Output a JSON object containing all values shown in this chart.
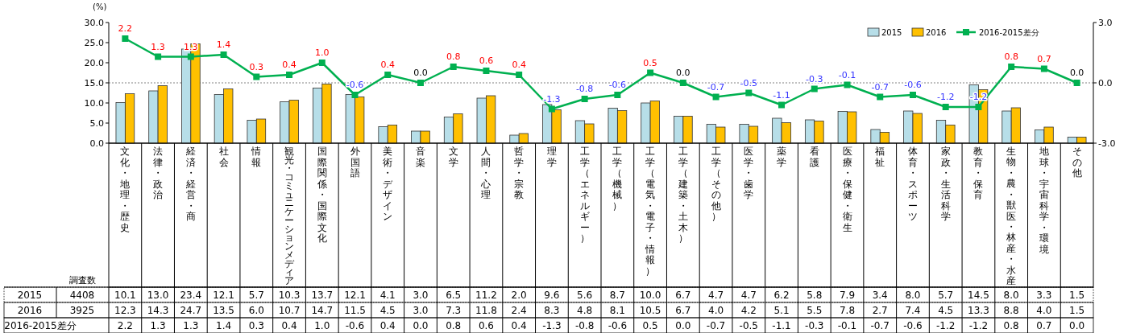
{
  "chart_data": {
    "type": "bar",
    "ylabel": "(%)",
    "categories": [
      "文化・地理・歴史",
      "法律・政治",
      "経済・経営・商",
      "社会",
      "情報",
      "観光・コミュニケーションメディア",
      "国際関係・国際文化",
      "外国語",
      "美術・デザイン",
      "音楽",
      "文学",
      "人間・心理",
      "哲学・宗教",
      "理学",
      "工学（エネルギー）",
      "工学（機械）",
      "工学（電気・電子・情報）",
      "工学（建築・土木）",
      "工学（その他）",
      "医学・歯学",
      "薬学",
      "看護",
      "医療・保健・衛生",
      "福祉",
      "体育・スポーツ",
      "家政・生活科学",
      "教育・保育",
      "生物・農・獣医・林産・水産",
      "地球・宇宙科学・環境",
      "その他"
    ],
    "series": [
      {
        "name": "2015",
        "color": "#b7dee8",
        "values": [
          10.1,
          13.0,
          23.4,
          12.1,
          5.7,
          10.3,
          13.7,
          12.1,
          4.1,
          3.0,
          6.5,
          11.2,
          2.0,
          9.6,
          5.6,
          8.7,
          10.0,
          6.7,
          4.7,
          4.7,
          6.2,
          5.8,
          7.9,
          3.4,
          8.0,
          5.7,
          14.5,
          8.0,
          3.3,
          1.5
        ],
        "value_labels": [
          "10.1",
          "13.0",
          "23.4",
          "12.1",
          "5.7",
          "10.3",
          "13.7",
          "12.1",
          "4.1",
          "3.0",
          "6.5",
          "11.2",
          "2.0",
          "9.6",
          "5.6",
          "8.7",
          "10.0",
          "6.7",
          "4.7",
          "4.7",
          "6.2",
          "5.8",
          "7.9",
          "3.4",
          "8.0",
          "5.7",
          "14.5",
          "8.0",
          "3.3",
          "1.5"
        ]
      },
      {
        "name": "2016",
        "color": "#ffc000",
        "values": [
          12.3,
          14.3,
          24.7,
          13.5,
          6.0,
          10.7,
          14.7,
          11.5,
          4.5,
          3.0,
          7.3,
          11.8,
          2.4,
          8.3,
          4.8,
          8.1,
          10.5,
          6.7,
          4.0,
          4.2,
          5.1,
          5.5,
          7.8,
          2.7,
          7.4,
          4.5,
          13.3,
          8.8,
          4.0,
          1.5
        ],
        "value_labels": [
          "12.3",
          "14.3",
          "24.7",
          "13.5",
          "6.0",
          "10.7",
          "14.7",
          "11.5",
          "4.5",
          "3.0",
          "7.3",
          "11.8",
          "2.4",
          "8.3",
          "4.8",
          "8.1",
          "10.5",
          "6.7",
          "4.0",
          "4.2",
          "5.1",
          "5.5",
          "7.8",
          "2.7",
          "7.4",
          "4.5",
          "13.3",
          "8.8",
          "4.0",
          "1.5"
        ]
      },
      {
        "name": "2016-2015差分",
        "type": "line",
        "axis": "y2",
        "color": "#00b050",
        "values": [
          2.2,
          1.3,
          1.3,
          1.4,
          0.3,
          0.4,
          1.0,
          -0.6,
          0.4,
          0.0,
          0.8,
          0.6,
          0.4,
          -1.3,
          -0.8,
          -0.6,
          0.5,
          0.0,
          -0.7,
          -0.5,
          -1.1,
          -0.3,
          -0.1,
          -0.7,
          -0.6,
          -1.2,
          -1.2,
          0.8,
          0.7,
          0.0
        ],
        "value_labels": [
          "2.2",
          "1.3",
          "1.3",
          "1.4",
          "0.3",
          "0.4",
          "1.0",
          "-0.6",
          "0.4",
          "0.0",
          "0.8",
          "0.6",
          "0.4",
          "-1.3",
          "-0.8",
          "-0.6",
          "0.5",
          "0.0",
          "-0.7",
          "-0.5",
          "-1.1",
          "-0.3",
          "-0.1",
          "-0.7",
          "-0.6",
          "-1.2",
          "-1.2",
          "0.8",
          "0.7",
          "0.0"
        ]
      }
    ],
    "ylim": [
      0,
      30
    ],
    "yticks": [
      {
        "value": 0,
        "label": "0.0"
      },
      {
        "value": 5,
        "label": "5.0"
      },
      {
        "value": 10,
        "label": "10.0"
      },
      {
        "value": 15,
        "label": "15.0"
      },
      {
        "value": 20,
        "label": "20.0"
      },
      {
        "value": 25,
        "label": "25.0"
      },
      {
        "value": 30,
        "label": "30.0"
      }
    ],
    "y2lim": [
      -3,
      3
    ],
    "y2ticks": [
      {
        "value": -3,
        "label": "-3.0"
      },
      {
        "value": 0,
        "label": "0.0"
      },
      {
        "value": 3,
        "label": "3.0"
      }
    ],
    "ref_lines": [
      {
        "axis": "y2",
        "value": 0,
        "line_style": "dotted",
        "color": "#808080"
      }
    ],
    "annotations": [
      "調査数",
      "4408",
      "3925"
    ],
    "marker": "square",
    "legend": "top right",
    "grid": false
  }
}
